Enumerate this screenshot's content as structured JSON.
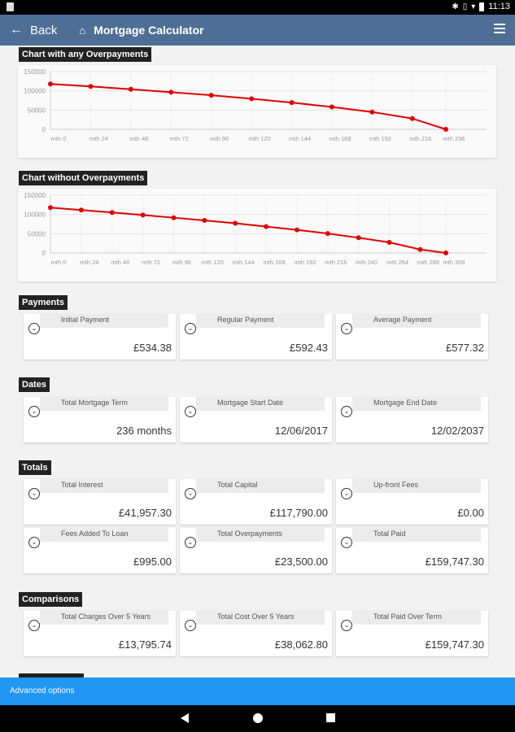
{
  "status_bar": {
    "time": "11:13"
  },
  "app_bar": {
    "back_label": "Back",
    "title": "Mortgage Calculator"
  },
  "charts": {
    "overpay": {
      "label": "Chart with any Overpayments"
    },
    "noover": {
      "label": "Chart without Overpayments"
    }
  },
  "chart_data": [
    {
      "type": "line",
      "title": "Chart with any Overpayments",
      "yticks": [
        "150000",
        "100000",
        "50000",
        "0"
      ],
      "ylim": [
        0,
        150000
      ],
      "x_tick_labels": [
        "mth 0",
        "mth 24",
        "mth 48",
        "mth 72",
        "mth 96",
        "mth 120",
        "mth 144",
        "mth 168",
        "mth 192",
        "mth 216",
        "mth 236"
      ],
      "x": [
        0,
        24,
        48,
        72,
        96,
        120,
        144,
        168,
        192,
        216,
        236
      ],
      "values": [
        117790,
        111500,
        104000,
        96500,
        88500,
        79500,
        69500,
        58000,
        45000,
        28000,
        0
      ],
      "grid": true,
      "color": "#e00000"
    },
    {
      "type": "line",
      "title": "Chart without Overpayments",
      "yticks": [
        "150000",
        "100000",
        "50000",
        "0"
      ],
      "ylim": [
        0,
        150000
      ],
      "x_tick_labels": [
        "mth 0",
        "mth 24",
        "mth 48",
        "mth 72",
        "mth 96",
        "mth 120",
        "mth 144",
        "mth 168",
        "mth 192",
        "mth 216",
        "mth 240",
        "mth 264",
        "mth 288",
        "mth 308"
      ],
      "x": [
        0,
        24,
        48,
        72,
        96,
        120,
        144,
        168,
        192,
        216,
        240,
        264,
        288,
        308
      ],
      "values": [
        117790,
        111500,
        105000,
        98500,
        91500,
        84500,
        77000,
        68500,
        60000,
        50500,
        39500,
        27500,
        9000,
        0
      ],
      "grid": true,
      "color": "#e00000"
    }
  ],
  "payments": {
    "label": "Payments",
    "tiles": [
      {
        "label": "Initial Payment",
        "value": "£534.38"
      },
      {
        "label": "Regular Payment",
        "value": "£592.43"
      },
      {
        "label": "Average Payment",
        "value": "£577.32"
      }
    ]
  },
  "dates": {
    "label": "Dates",
    "tiles": [
      {
        "label": "Total Mortgage Term",
        "value": "236 months"
      },
      {
        "label": "Mortgage Start Date",
        "value": "12/06/2017"
      },
      {
        "label": "Mortgage End Date",
        "value": "12/02/2037"
      }
    ]
  },
  "totals": {
    "label": "Totals",
    "tiles": [
      {
        "label": "Total Interest",
        "value": "£41,957.30"
      },
      {
        "label": "Total Capital",
        "value": "£117,790.00"
      },
      {
        "label": "Up-front Fees",
        "value": "£0.00"
      },
      {
        "label": "Fees Added To Loan",
        "value": "£995.00"
      },
      {
        "label": "Total Overpayments",
        "value": "£23,500.00"
      },
      {
        "label": "Total Paid",
        "value": "£159,747.30"
      }
    ]
  },
  "comparisons": {
    "label": "Comparisons",
    "tiles": [
      {
        "label": "Total Charges Over 5 Years",
        "value": "£13,795.74"
      },
      {
        "label": "Total Cost Over 5 Years",
        "value": "£38,062.80"
      },
      {
        "label": "Total Paid Over Term",
        "value": "£159,747.30"
      }
    ]
  },
  "advanced": {
    "label": "Advanced options"
  },
  "icons": {
    "back": "arrow-left-icon",
    "home": "home-icon",
    "menu": "hamburger-menu-icon",
    "expand": "chevron-down-circle-icon"
  }
}
